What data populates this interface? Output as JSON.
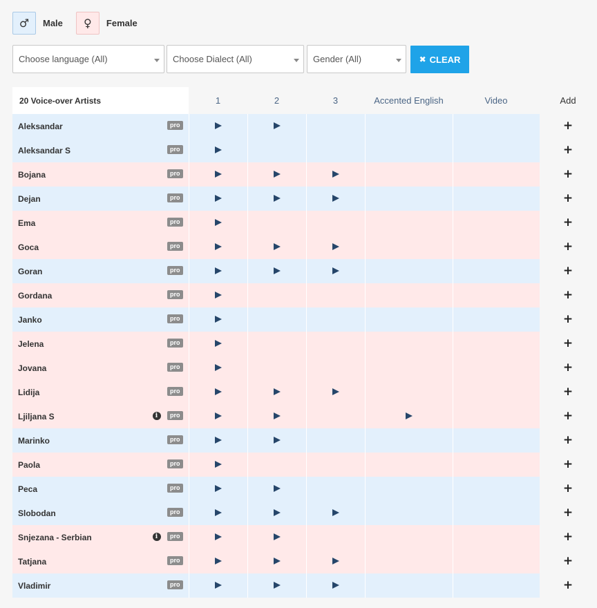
{
  "legend": {
    "male_symbol": "♂",
    "male_label": "Male",
    "female_symbol": "♀",
    "female_label": "Female"
  },
  "filters": {
    "language": "Choose language (All)",
    "dialect": "Choose Dialect (All)",
    "gender": "Gender (All)",
    "clear_icon": "✖",
    "clear_label": "CLEAR"
  },
  "table": {
    "headers": {
      "artists": "20 Voice-over Artists",
      "c1": "1",
      "c2": "2",
      "c3": "3",
      "accented": "Accented English",
      "video": "Video",
      "add": "Add"
    },
    "pro_badge": "pro",
    "info_icon": "i",
    "add_icon": "+",
    "rows": [
      {
        "name": "Aleksandar",
        "gender": "male",
        "info": false,
        "samples": [
          true,
          true,
          false,
          false,
          false
        ]
      },
      {
        "name": "Aleksandar S",
        "gender": "male",
        "info": false,
        "samples": [
          true,
          false,
          false,
          false,
          false
        ]
      },
      {
        "name": "Bojana",
        "gender": "female",
        "info": false,
        "samples": [
          true,
          true,
          true,
          false,
          false
        ]
      },
      {
        "name": "Dejan",
        "gender": "male",
        "info": false,
        "samples": [
          true,
          true,
          true,
          false,
          false
        ]
      },
      {
        "name": "Ema",
        "gender": "female",
        "info": false,
        "samples": [
          true,
          false,
          false,
          false,
          false
        ]
      },
      {
        "name": "Goca",
        "gender": "female",
        "info": false,
        "samples": [
          true,
          true,
          true,
          false,
          false
        ]
      },
      {
        "name": "Goran",
        "gender": "male",
        "info": false,
        "samples": [
          true,
          true,
          true,
          false,
          false
        ]
      },
      {
        "name": "Gordana",
        "gender": "female",
        "info": false,
        "samples": [
          true,
          false,
          false,
          false,
          false
        ]
      },
      {
        "name": "Janko",
        "gender": "male",
        "info": false,
        "samples": [
          true,
          false,
          false,
          false,
          false
        ]
      },
      {
        "name": "Jelena",
        "gender": "female",
        "info": false,
        "samples": [
          true,
          false,
          false,
          false,
          false
        ]
      },
      {
        "name": "Jovana",
        "gender": "female",
        "info": false,
        "samples": [
          true,
          false,
          false,
          false,
          false
        ]
      },
      {
        "name": "Lidija",
        "gender": "female",
        "info": false,
        "samples": [
          true,
          true,
          true,
          false,
          false
        ]
      },
      {
        "name": "Ljiljana S",
        "gender": "female",
        "info": true,
        "samples": [
          true,
          true,
          false,
          true,
          false
        ]
      },
      {
        "name": "Marinko",
        "gender": "male",
        "info": false,
        "samples": [
          true,
          true,
          false,
          false,
          false
        ]
      },
      {
        "name": "Paola",
        "gender": "female",
        "info": false,
        "samples": [
          true,
          false,
          false,
          false,
          false
        ]
      },
      {
        "name": "Peca",
        "gender": "male",
        "info": false,
        "samples": [
          true,
          true,
          false,
          false,
          false
        ]
      },
      {
        "name": "Slobodan",
        "gender": "male",
        "info": false,
        "samples": [
          true,
          true,
          true,
          false,
          false
        ]
      },
      {
        "name": "Snjezana - Serbian",
        "gender": "female",
        "info": true,
        "samples": [
          true,
          true,
          false,
          false,
          false
        ]
      },
      {
        "name": "Tatjana",
        "gender": "female",
        "info": false,
        "samples": [
          true,
          true,
          true,
          false,
          false
        ]
      },
      {
        "name": "Vladimir",
        "gender": "male",
        "info": false,
        "samples": [
          true,
          true,
          true,
          false,
          false
        ]
      }
    ]
  }
}
